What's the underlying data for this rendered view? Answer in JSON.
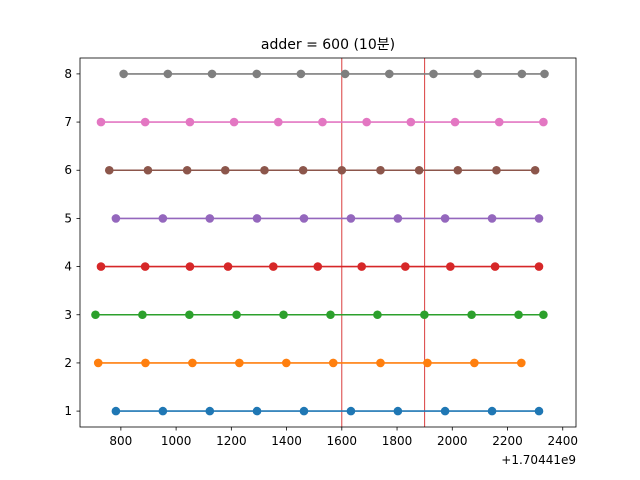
{
  "chart_data": {
    "type": "line",
    "title": "adder = 600 (10분)",
    "xlabel": "",
    "ylabel": "",
    "x_offset_label": "+1.70441e9",
    "xlim": [
      652,
      2448
    ],
    "ylim": [
      0.67,
      8.33
    ],
    "x_ticks": [
      800,
      1000,
      1200,
      1400,
      1600,
      1800,
      2000,
      2200,
      2400
    ],
    "y_ticks": [
      1,
      2,
      3,
      4,
      5,
      6,
      7,
      8
    ],
    "vlines": [
      {
        "x": 1600,
        "color": "#d62728"
      },
      {
        "x": 1900,
        "color": "#d62728"
      }
    ],
    "grid": false,
    "series": [
      {
        "y": 1,
        "color": "#1f77b4",
        "x": [
          782,
          952,
          1122,
          1293,
          1463,
          1633,
          1803,
          1974,
          2144,
          2314
        ]
      },
      {
        "y": 2,
        "color": "#ff7f0e",
        "x": [
          718,
          889,
          1059,
          1229,
          1399,
          1569,
          1740,
          1910,
          2080,
          2250
        ]
      },
      {
        "y": 3,
        "color": "#2ca02c",
        "x": [
          708,
          878,
          1048,
          1219,
          1389,
          1559,
          1729,
          1899,
          2070,
          2240,
          2330
        ]
      },
      {
        "y": 4,
        "color": "#d62728",
        "x": [
          728,
          888,
          1050,
          1188,
          1352,
          1513,
          1672,
          1830,
          1993,
          2155,
          2314
        ]
      },
      {
        "y": 5,
        "color": "#9467bd",
        "x": [
          782,
          952,
          1122,
          1293,
          1463,
          1633,
          1803,
          1974,
          2144,
          2314
        ]
      },
      {
        "y": 6,
        "color": "#8c564b",
        "x": [
          758,
          898,
          1040,
          1178,
          1320,
          1460,
          1600,
          1740,
          1880,
          2020,
          2160,
          2300
        ]
      },
      {
        "y": 7,
        "color": "#e377c2",
        "x": [
          728,
          888,
          1050,
          1210,
          1370,
          1530,
          1690,
          1850,
          2010,
          2170,
          2330
        ]
      },
      {
        "y": 8,
        "color": "#7f7f7f",
        "x": [
          810,
          970,
          1130,
          1292,
          1452,
          1612,
          1772,
          1932,
          2092,
          2252,
          2334
        ]
      }
    ]
  }
}
